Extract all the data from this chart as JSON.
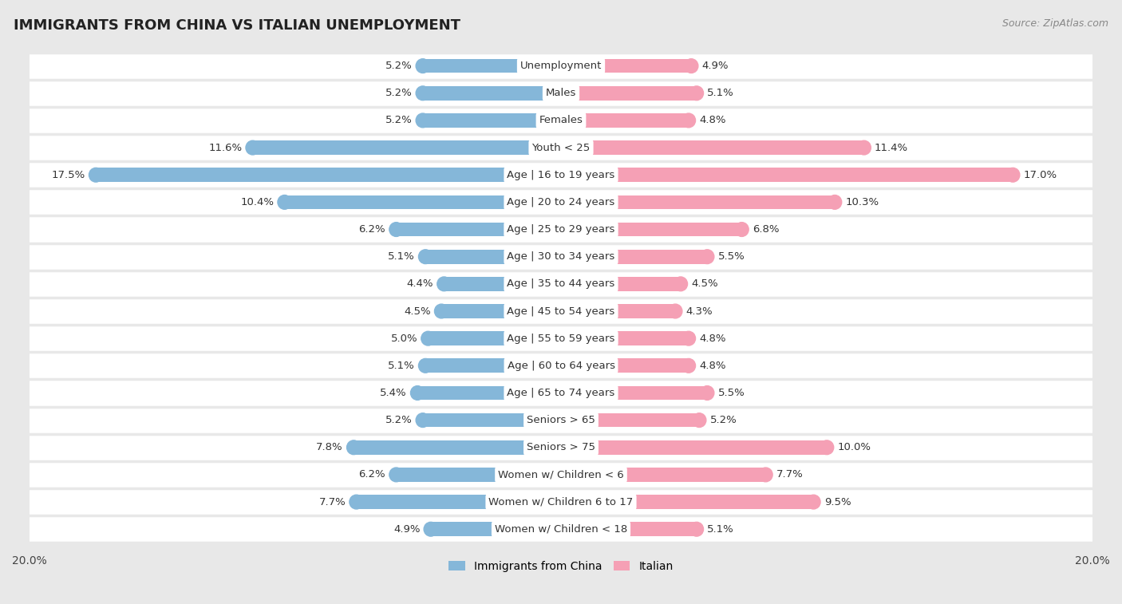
{
  "title": "IMMIGRANTS FROM CHINA VS ITALIAN UNEMPLOYMENT",
  "source": "Source: ZipAtlas.com",
  "categories": [
    "Unemployment",
    "Males",
    "Females",
    "Youth < 25",
    "Age | 16 to 19 years",
    "Age | 20 to 24 years",
    "Age | 25 to 29 years",
    "Age | 30 to 34 years",
    "Age | 35 to 44 years",
    "Age | 45 to 54 years",
    "Age | 55 to 59 years",
    "Age | 60 to 64 years",
    "Age | 65 to 74 years",
    "Seniors > 65",
    "Seniors > 75",
    "Women w/ Children < 6",
    "Women w/ Children 6 to 17",
    "Women w/ Children < 18"
  ],
  "china_values": [
    5.2,
    5.2,
    5.2,
    11.6,
    17.5,
    10.4,
    6.2,
    5.1,
    4.4,
    4.5,
    5.0,
    5.1,
    5.4,
    5.2,
    7.8,
    6.2,
    7.7,
    4.9
  ],
  "italian_values": [
    4.9,
    5.1,
    4.8,
    11.4,
    17.0,
    10.3,
    6.8,
    5.5,
    4.5,
    4.3,
    4.8,
    4.8,
    5.5,
    5.2,
    10.0,
    7.7,
    9.5,
    5.1
  ],
  "china_color": "#85b7d9",
  "italian_color": "#f5a0b5",
  "background_color": "#e8e8e8",
  "row_color": "#ffffff",
  "row_alt_color": "#f5f5f5",
  "axis_limit": 20.0,
  "bar_height": 0.52,
  "label_fontsize": 9.5,
  "title_fontsize": 13,
  "source_fontsize": 9,
  "legend_fontsize": 10,
  "value_fontsize": 9.5
}
